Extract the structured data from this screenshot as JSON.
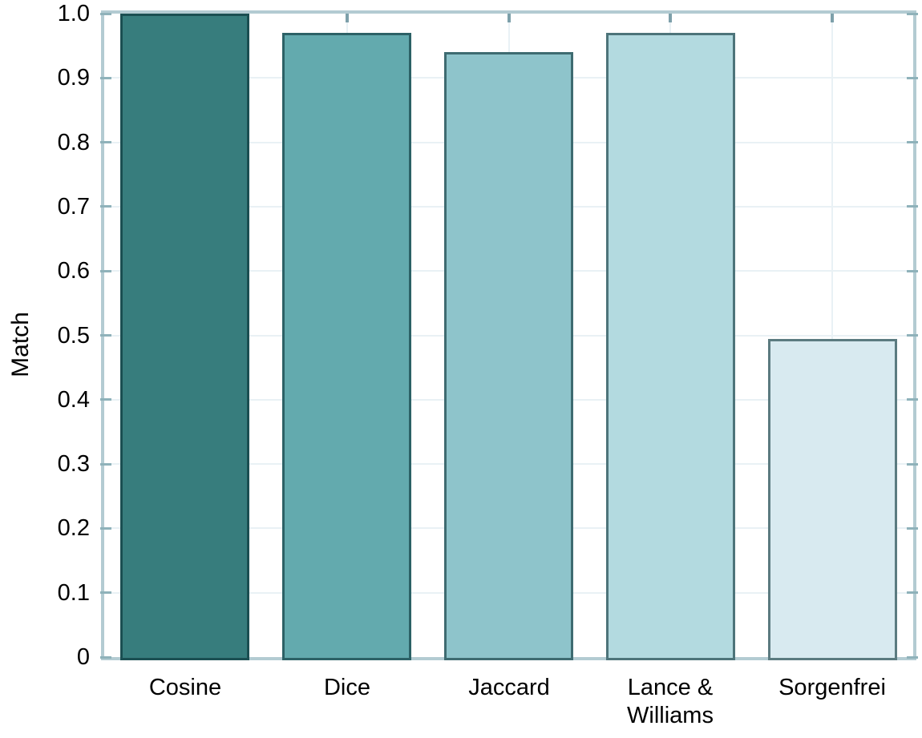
{
  "chart_data": {
    "type": "bar",
    "title": "",
    "ylabel": "Match",
    "xlabel": "",
    "categories": [
      "Cosine",
      "Dice",
      "Jaccard",
      "Lance & Williams",
      "Sorgenfrei"
    ],
    "category_label_lines": [
      [
        "Cosine"
      ],
      [
        "Dice"
      ],
      [
        "Jaccard"
      ],
      [
        "Lance &",
        "Williams"
      ],
      [
        "Sorgenfrei"
      ]
    ],
    "values": [
      1.0,
      0.97,
      0.94,
      0.97,
      0.495
    ],
    "ylim": [
      0,
      1
    ],
    "yticks": [
      0,
      0.1,
      0.2,
      0.3,
      0.4,
      0.5,
      0.6,
      0.7,
      0.8,
      0.9,
      1.0
    ],
    "ytick_labels": [
      "0",
      "0.1",
      "0.2",
      "0.3",
      "0.4",
      "0.5",
      "0.6",
      "0.7",
      "0.8",
      "0.9",
      "1.0"
    ],
    "grid": true,
    "legend": null,
    "bar_colors": [
      "#377d7d",
      "#63aaae",
      "#8ec4cb",
      "#b3dae0",
      "#d8eaf0"
    ],
    "bar_border_color": "rgba(8,48,54,0.6)",
    "frame_color": "#b3cbd2",
    "gridline_color": "#e9f1f5",
    "side_tick_color": "#8fb2ba",
    "top_tick_color": "#7da0aa",
    "text_color": "#000000",
    "background_color": "#ffffff"
  }
}
